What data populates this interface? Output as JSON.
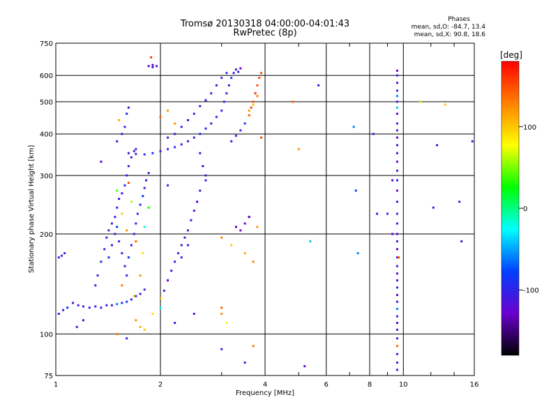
{
  "header": {
    "title_line1": "Tromsø 20130318 04:00:00-04:01:43",
    "title_line2": "RwPretec (8p)",
    "phase_title": "Phases",
    "phase_o": "mean, sd,O: -84.7, 13.4",
    "phase_x": "mean, sd,X:  90.8, 18.6"
  },
  "colorbar": {
    "label": "[deg]",
    "ticks": [
      "100",
      "0",
      "-100"
    ],
    "stops": [
      "#ff0000",
      "#ff8000",
      "#ffff00",
      "#00ff00",
      "#00ffff",
      "#0040ff",
      "#6a00d0",
      "#000000"
    ]
  },
  "chart_data": {
    "type": "scatter",
    "xlabel": "Frequency [MHz]",
    "ylabel": "Stationary phase Virtual Height [km]",
    "xlim": [
      1,
      16
    ],
    "ylim": [
      75,
      750
    ],
    "xscale": "log",
    "yscale": "log",
    "xticks": [
      "1",
      "2",
      "4",
      "6",
      "8",
      "10",
      "16"
    ],
    "yticks": [
      "75",
      "100",
      "200",
      "300",
      "400",
      "500",
      "600",
      "750"
    ],
    "grid": true,
    "series": [
      {
        "points": [
          [
            1.02,
            115,
            -110
          ],
          [
            1.05,
            118,
            -100
          ],
          [
            1.08,
            120,
            -90
          ],
          [
            1.12,
            124,
            -100
          ],
          [
            1.16,
            122,
            -110
          ],
          [
            1.2,
            121,
            -95
          ],
          [
            1.25,
            120,
            -110
          ],
          [
            1.3,
            121,
            -100
          ],
          [
            1.35,
            120,
            -105
          ],
          [
            1.4,
            122,
            -100
          ],
          [
            1.45,
            122,
            -110
          ],
          [
            1.5,
            123,
            -60
          ],
          [
            1.55,
            124,
            -100
          ],
          [
            1.6,
            125,
            -80
          ],
          [
            1.65,
            127,
            -100
          ],
          [
            1.7,
            130,
            -95
          ],
          [
            1.75,
            132,
            -110
          ],
          [
            1.8,
            136,
            -100
          ],
          [
            1.02,
            170,
            -100
          ],
          [
            1.04,
            172,
            -95
          ],
          [
            1.06,
            175,
            -110
          ],
          [
            1.3,
            140,
            -100
          ],
          [
            1.32,
            150,
            -110
          ],
          [
            1.35,
            165,
            -100
          ],
          [
            1.38,
            180,
            -95
          ],
          [
            1.4,
            195,
            -105
          ],
          [
            1.42,
            205,
            -100
          ],
          [
            1.45,
            215,
            -110
          ],
          [
            1.48,
            225,
            -100
          ],
          [
            1.5,
            240,
            -95
          ],
          [
            1.52,
            255,
            -100
          ],
          [
            1.55,
            265,
            -110
          ],
          [
            1.58,
            280,
            -100
          ],
          [
            1.6,
            300,
            -95
          ],
          [
            1.62,
            320,
            -100
          ],
          [
            1.65,
            340,
            -110
          ],
          [
            1.68,
            355,
            -105
          ],
          [
            1.7,
            360,
            -100
          ],
          [
            1.42,
            170,
            -95
          ],
          [
            1.45,
            185,
            -100
          ],
          [
            1.48,
            200,
            -110
          ],
          [
            1.5,
            210,
            -80
          ],
          [
            1.52,
            190,
            -100
          ],
          [
            1.55,
            175,
            -95
          ],
          [
            1.58,
            160,
            -110
          ],
          [
            1.6,
            150,
            -100
          ],
          [
            1.62,
            170,
            -90
          ],
          [
            1.65,
            185,
            -105
          ],
          [
            1.68,
            200,
            -100
          ],
          [
            1.7,
            215,
            -95
          ],
          [
            1.72,
            230,
            -110
          ],
          [
            1.75,
            245,
            -100
          ],
          [
            1.78,
            260,
            -80
          ],
          [
            1.8,
            275,
            -100
          ],
          [
            1.82,
            290,
            -110
          ],
          [
            1.85,
            305,
            -95
          ],
          [
            1.5,
            270,
            40
          ],
          [
            1.55,
            230,
            100
          ],
          [
            1.6,
            205,
            120
          ],
          [
            1.65,
            250,
            60
          ],
          [
            1.7,
            190,
            140
          ],
          [
            1.75,
            150,
            120
          ],
          [
            1.8,
            210,
            -20
          ],
          [
            1.85,
            240,
            30
          ],
          [
            1.55,
            140,
            130
          ],
          [
            1.62,
            285,
            150
          ],
          [
            1.68,
            130,
            110
          ],
          [
            1.78,
            175,
            90
          ],
          [
            1.58,
            420,
            -100
          ],
          [
            1.6,
            460,
            -95
          ],
          [
            1.62,
            480,
            -110
          ],
          [
            1.55,
            400,
            -100
          ],
          [
            1.5,
            380,
            -105
          ],
          [
            1.52,
            440,
            110
          ],
          [
            1.62,
            350,
            -100
          ],
          [
            1.7,
            348,
            -110
          ],
          [
            1.8,
            347,
            -95
          ],
          [
            1.9,
            350,
            -100
          ],
          [
            2.0,
            355,
            -110
          ],
          [
            2.1,
            360,
            -100
          ],
          [
            2.2,
            365,
            -95
          ],
          [
            2.3,
            372,
            -100
          ],
          [
            2.4,
            380,
            -110
          ],
          [
            2.5,
            390,
            -100
          ],
          [
            2.6,
            400,
            -95
          ],
          [
            2.7,
            415,
            -100
          ],
          [
            2.8,
            430,
            -110
          ],
          [
            2.9,
            450,
            -100
          ],
          [
            3.0,
            470,
            -95
          ],
          [
            3.05,
            500,
            -100
          ],
          [
            3.1,
            530,
            -110
          ],
          [
            3.15,
            560,
            -100
          ],
          [
            3.2,
            590,
            -95
          ],
          [
            3.25,
            610,
            -110
          ],
          [
            3.3,
            625,
            -120
          ],
          [
            3.35,
            615,
            -100
          ],
          [
            3.4,
            630,
            -130
          ],
          [
            2.3,
            420,
            -100
          ],
          [
            2.4,
            440,
            -110
          ],
          [
            2.5,
            460,
            -95
          ],
          [
            2.6,
            485,
            -100
          ],
          [
            2.7,
            505,
            -110
          ],
          [
            2.8,
            530,
            -100
          ],
          [
            2.9,
            560,
            -95
          ],
          [
            3.0,
            590,
            -110
          ],
          [
            3.1,
            610,
            -100
          ],
          [
            2.2,
            400,
            -95
          ],
          [
            2.1,
            390,
            -100
          ],
          [
            3.2,
            380,
            -100
          ],
          [
            3.3,
            395,
            -110
          ],
          [
            3.4,
            410,
            -100
          ],
          [
            3.5,
            430,
            -90
          ],
          [
            3.6,
            455,
            140
          ],
          [
            3.65,
            480,
            150
          ],
          [
            3.7,
            500,
            150
          ],
          [
            3.75,
            530,
            160
          ],
          [
            3.8,
            560,
            150
          ],
          [
            3.85,
            590,
            155
          ],
          [
            3.9,
            610,
            150
          ],
          [
            3.6,
            470,
            120
          ],
          [
            3.7,
            490,
            100
          ],
          [
            3.8,
            520,
            130
          ],
          [
            1.85,
            640,
            -120
          ],
          [
            1.9,
            645,
            -125
          ],
          [
            1.95,
            640,
            -110
          ],
          [
            1.9,
            635,
            -100
          ],
          [
            1.88,
            680,
            160
          ],
          [
            2.1,
            470,
            120
          ],
          [
            2.0,
            450,
            140
          ],
          [
            2.2,
            430,
            120
          ],
          [
            2.6,
            350,
            -110
          ],
          [
            2.65,
            320,
            -120
          ],
          [
            2.7,
            300,
            -115
          ],
          [
            2.7,
            290,
            -100
          ],
          [
            2.6,
            270,
            -110
          ],
          [
            2.55,
            250,
            -130
          ],
          [
            2.5,
            235,
            -120
          ],
          [
            2.45,
            220,
            -110
          ],
          [
            2.4,
            205,
            -100
          ],
          [
            2.35,
            195,
            -115
          ],
          [
            2.3,
            185,
            -120
          ],
          [
            2.25,
            175,
            -100
          ],
          [
            2.2,
            165,
            -110
          ],
          [
            2.15,
            155,
            -100
          ],
          [
            2.1,
            145,
            -130
          ],
          [
            2.05,
            135,
            -110
          ],
          [
            2.0,
            128,
            110
          ],
          [
            3.3,
            210,
            -130
          ],
          [
            3.4,
            205,
            -125
          ],
          [
            3.5,
            215,
            -120
          ],
          [
            3.6,
            225,
            -140
          ],
          [
            3.0,
            195,
            130
          ],
          [
            3.2,
            185,
            100
          ],
          [
            3.5,
            175,
            110
          ],
          [
            2.4,
            185,
            -100
          ],
          [
            1.75,
            105,
            110
          ],
          [
            1.8,
            103,
            100
          ],
          [
            1.7,
            110,
            120
          ],
          [
            1.9,
            115,
            90
          ],
          [
            2.0,
            120,
            -20
          ],
          [
            1.2,
            110,
            -120
          ],
          [
            1.15,
            105,
            -100
          ],
          [
            1.35,
            330,
            -130
          ],
          [
            1.6,
            97,
            -110
          ],
          [
            1.5,
            100,
            130
          ],
          [
            3.5,
            82,
            -100
          ],
          [
            3.7,
            92,
            130
          ],
          [
            3.0,
            90,
            -100
          ],
          [
            3.0,
            115,
            120
          ],
          [
            3.0,
            120,
            140
          ],
          [
            3.1,
            108,
            80
          ],
          [
            2.2,
            108,
            -100
          ],
          [
            2.5,
            115,
            -120
          ],
          [
            2.3,
            170,
            -100
          ],
          [
            2.1,
            280,
            -110
          ],
          [
            3.6,
            225,
            -130
          ],
          [
            3.7,
            165,
            130
          ],
          [
            3.9,
            390,
            150
          ],
          [
            3.8,
            210,
            120
          ],
          [
            4.8,
            500,
            140
          ],
          [
            5.0,
            360,
            120
          ],
          [
            5.2,
            80,
            -120
          ],
          [
            5.4,
            190,
            -40
          ],
          [
            5.7,
            560,
            -110
          ],
          [
            7.2,
            420,
            -60
          ],
          [
            7.3,
            270,
            -80
          ],
          [
            7.4,
            175,
            -60
          ],
          [
            8.2,
            400,
            -110
          ],
          [
            8.4,
            230,
            -120
          ],
          [
            11.2,
            500,
            60
          ],
          [
            12.2,
            240,
            -110
          ],
          [
            12.5,
            370,
            -100
          ],
          [
            13.2,
            490,
            100
          ],
          [
            14.5,
            250,
            -120
          ],
          [
            14.7,
            190,
            -110
          ],
          [
            15.8,
            380,
            -100
          ],
          [
            9.6,
            620,
            -130
          ],
          [
            9.6,
            600,
            -110
          ],
          [
            9.6,
            570,
            -120
          ],
          [
            9.6,
            540,
            -100
          ],
          [
            9.6,
            520,
            -60
          ],
          [
            9.6,
            500,
            -110
          ],
          [
            9.6,
            480,
            -40
          ],
          [
            9.6,
            460,
            -120
          ],
          [
            9.6,
            430,
            -110
          ],
          [
            9.6,
            410,
            -100
          ],
          [
            9.6,
            390,
            -120
          ],
          [
            9.6,
            370,
            -110
          ],
          [
            9.6,
            350,
            -100
          ],
          [
            9.6,
            330,
            -120
          ],
          [
            9.6,
            310,
            -110
          ],
          [
            9.6,
            290,
            -100
          ],
          [
            9.6,
            270,
            -120
          ],
          [
            9.6,
            250,
            -110
          ],
          [
            9.6,
            230,
            -100
          ],
          [
            9.6,
            215,
            -120
          ],
          [
            9.6,
            200,
            -110
          ],
          [
            9.6,
            190,
            -100
          ],
          [
            9.6,
            180,
            -120
          ],
          [
            9.6,
            170,
            -110
          ],
          [
            9.6,
            160,
            -100
          ],
          [
            9.6,
            152,
            -120
          ],
          [
            9.6,
            145,
            -110
          ],
          [
            9.6,
            138,
            -100
          ],
          [
            9.6,
            131,
            -120
          ],
          [
            9.6,
            125,
            -110
          ],
          [
            9.6,
            119,
            -60
          ],
          [
            9.6,
            113,
            -100
          ],
          [
            9.6,
            108,
            -120
          ],
          [
            9.6,
            103,
            -110
          ],
          [
            9.6,
            97,
            -100
          ],
          [
            9.6,
            92,
            140
          ],
          [
            9.6,
            87,
            -120
          ],
          [
            9.6,
            82,
            -110
          ],
          [
            9.6,
            78,
            -100
          ],
          [
            9.3,
            290,
            -120
          ],
          [
            9.3,
            200,
            -120
          ],
          [
            9.0,
            230,
            -100
          ],
          [
            9.7,
            170,
            150
          ]
        ]
      }
    ]
  }
}
